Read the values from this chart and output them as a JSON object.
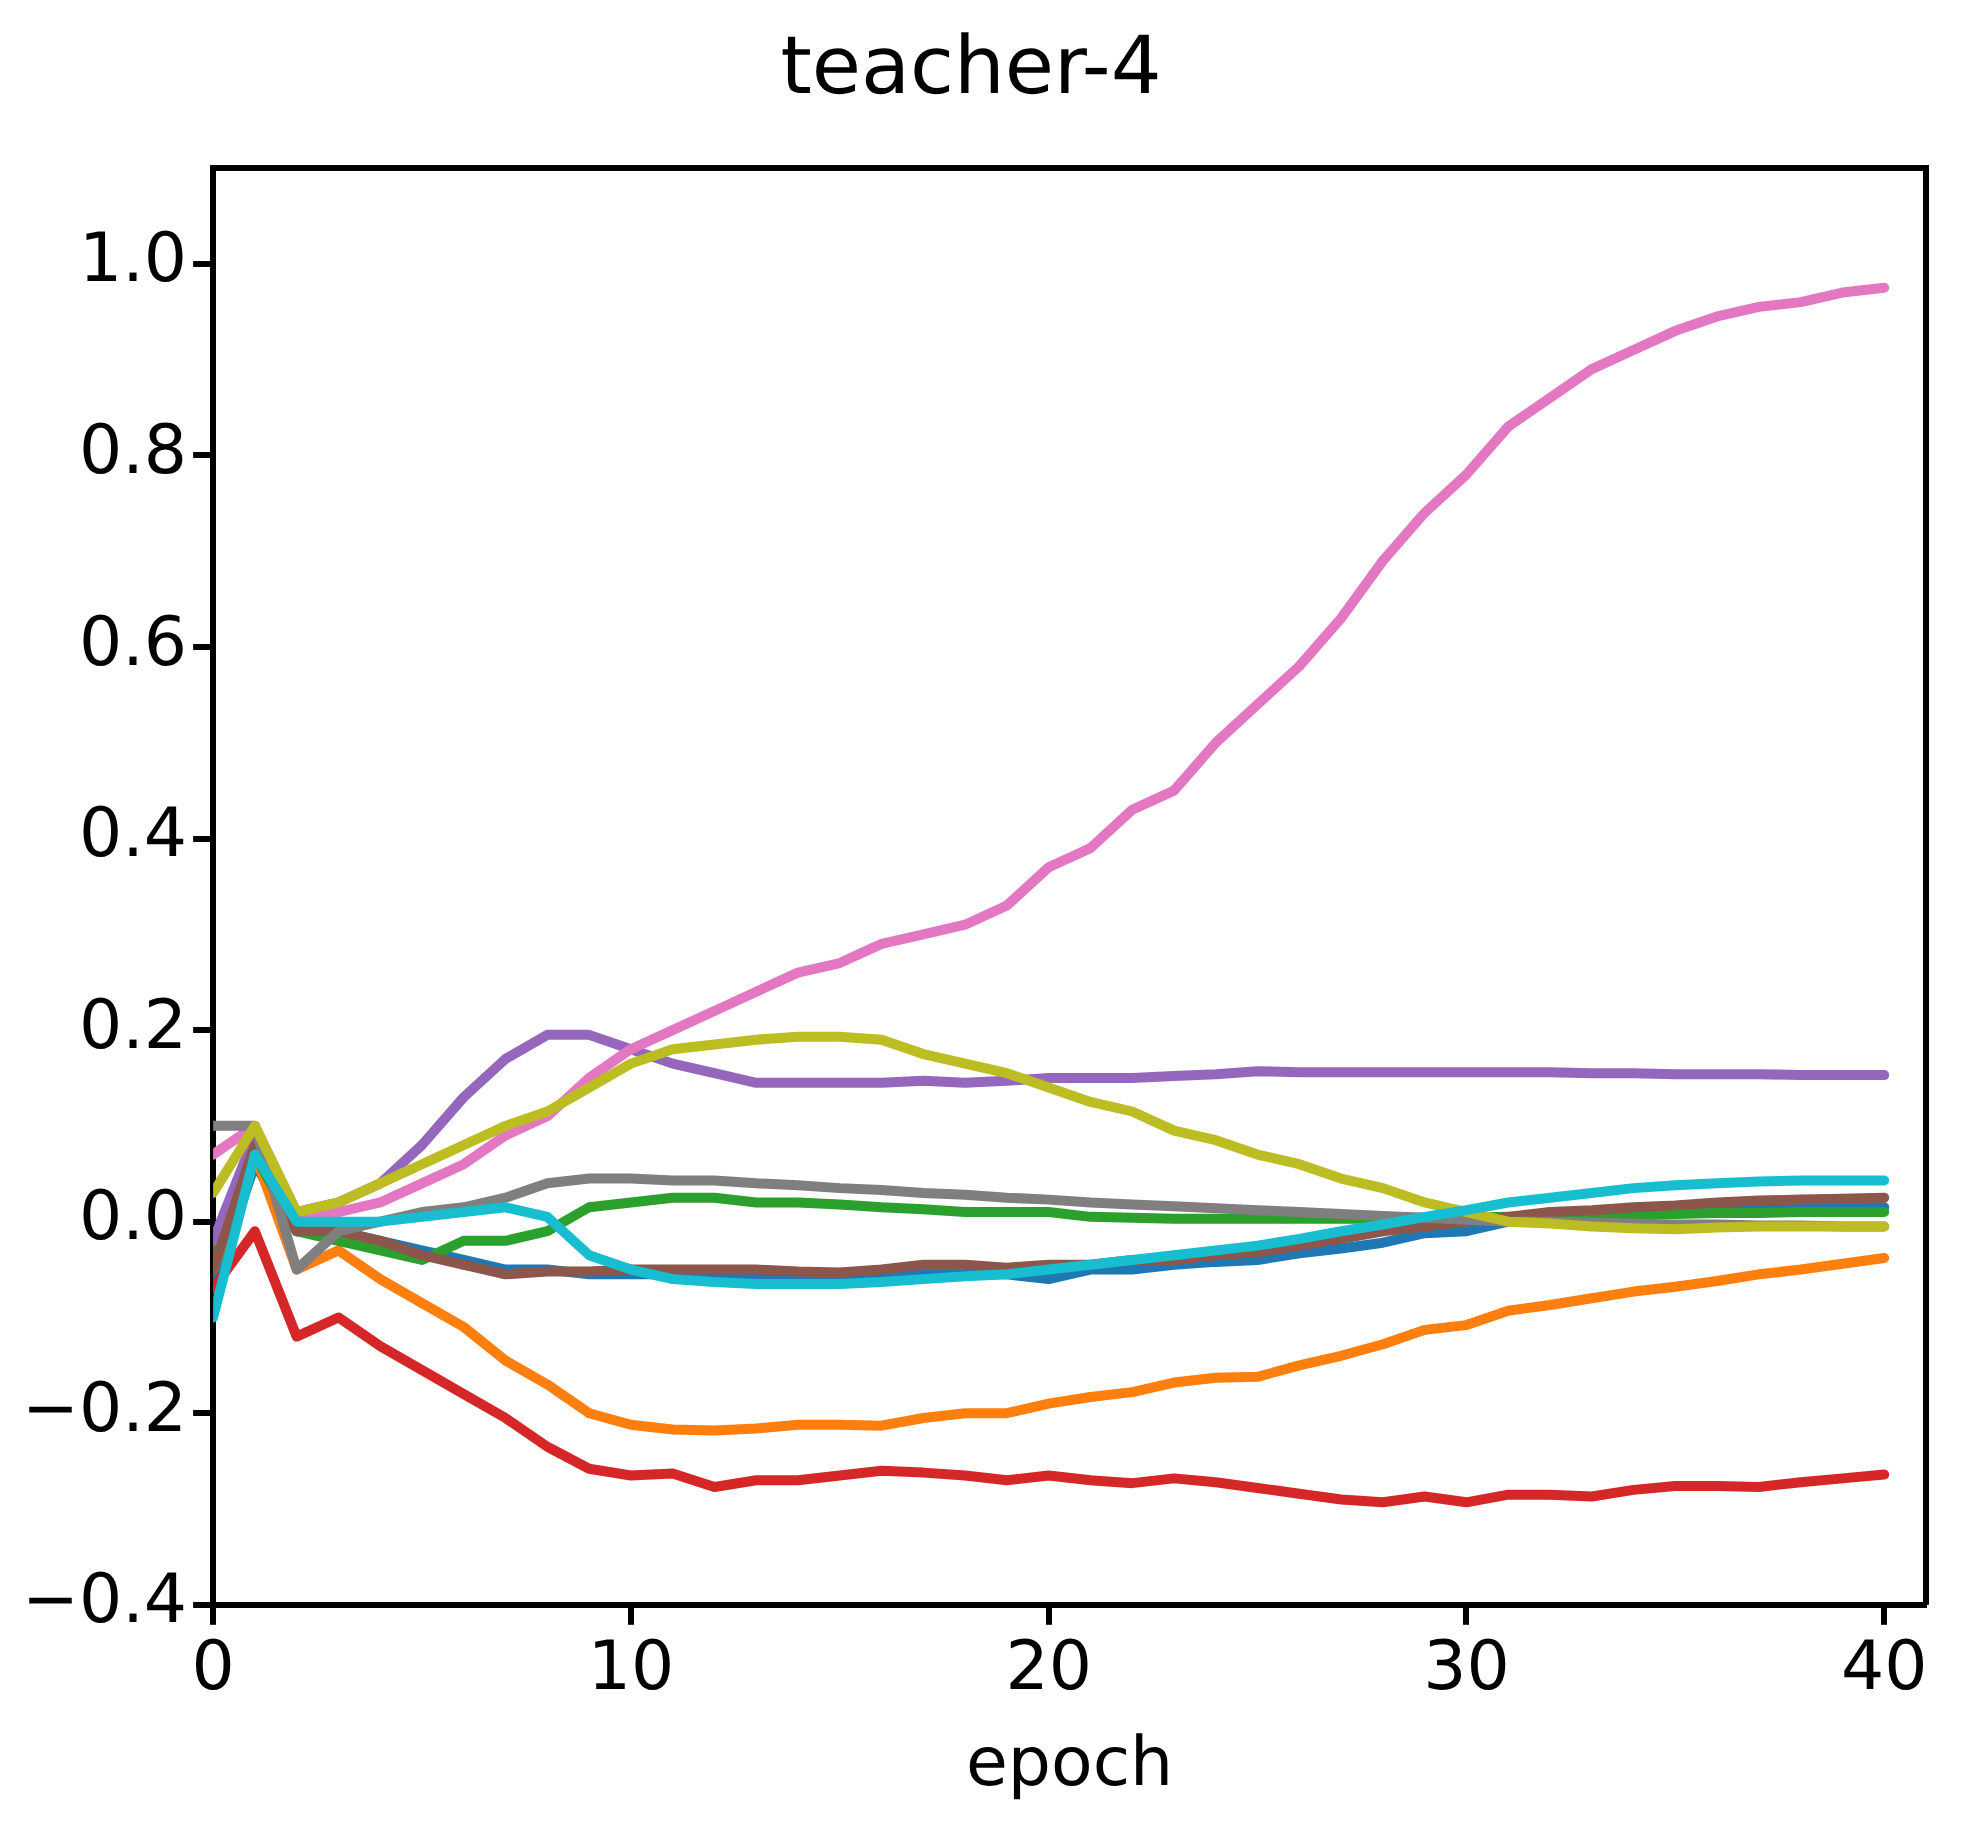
{
  "chart_data": {
    "type": "line",
    "title": "teacher-4",
    "xlabel": "epoch",
    "x": [
      0,
      1,
      2,
      3,
      4,
      5,
      6,
      7,
      8,
      9,
      10,
      11,
      12,
      13,
      14,
      15,
      16,
      17,
      18,
      19,
      20,
      21,
      22,
      23,
      24,
      25,
      26,
      27,
      28,
      29,
      30,
      31,
      32,
      33,
      34,
      35,
      36,
      37,
      38,
      39,
      40
    ],
    "xlim": [
      0,
      41
    ],
    "ylim": [
      -0.4,
      1.1
    ],
    "xticks": [
      0,
      10,
      20,
      30,
      40
    ],
    "yticks": [
      {
        "value": -0.4,
        "label": "−0.4"
      },
      {
        "value": -0.2,
        "label": "−0.2"
      },
      {
        "value": 0,
        "label": "0.0"
      },
      {
        "value": 0.2,
        "label": "0.2"
      },
      {
        "value": 0.4,
        "label": "0.4"
      },
      {
        "value": 0.6,
        "label": "0.6"
      },
      {
        "value": 0.8,
        "label": "0.8"
      },
      {
        "value": 1.0,
        "label": "1.0"
      }
    ],
    "grid": false,
    "legend": false,
    "marker": "none",
    "line_style": "solid",
    "series": [
      {
        "color": "#1f77b4",
        "values": [
          -0.07,
          0.06,
          -0.01,
          -0.01,
          -0.02,
          -0.03,
          -0.04,
          -0.05,
          -0.05,
          -0.055,
          -0.055,
          -0.055,
          -0.055,
          -0.055,
          -0.055,
          -0.055,
          -0.055,
          -0.055,
          -0.055,
          -0.055,
          -0.06,
          -0.05,
          -0.05,
          -0.045,
          -0.042,
          -0.04,
          -0.033,
          -0.028,
          -0.022,
          -0.012,
          -0.01,
          0.0,
          0.005,
          0.008,
          0.01,
          0.012,
          0.013,
          0.014,
          0.014,
          0.015,
          0.015
        ]
      },
      {
        "color": "#ff7f0e",
        "values": [
          -0.05,
          0.07,
          -0.05,
          -0.03,
          -0.06,
          -0.085,
          -0.11,
          -0.145,
          -0.17,
          -0.2,
          -0.212,
          -0.217,
          -0.218,
          -0.216,
          -0.212,
          -0.212,
          -0.213,
          -0.205,
          -0.2,
          -0.2,
          -0.19,
          -0.183,
          -0.178,
          -0.168,
          -0.163,
          -0.162,
          -0.15,
          -0.14,
          -0.128,
          -0.113,
          -0.108,
          -0.093,
          -0.087,
          -0.08,
          -0.073,
          -0.068,
          -0.062,
          -0.055,
          -0.05,
          -0.044,
          -0.038
        ]
      },
      {
        "color": "#2ca02c",
        "values": [
          -0.03,
          0.07,
          -0.01,
          -0.02,
          -0.03,
          -0.04,
          -0.02,
          -0.02,
          -0.01,
          0.015,
          0.02,
          0.025,
          0.025,
          0.02,
          0.02,
          0.018,
          0.015,
          0.013,
          0.01,
          0.01,
          0.01,
          0.005,
          0.004,
          0.003,
          0.003,
          0.003,
          0.003,
          0.003,
          0.003,
          0.004,
          0.004,
          0.005,
          0.006,
          0.007,
          0.008,
          0.008,
          0.009,
          0.009,
          0.01,
          0.01,
          0.01
        ]
      },
      {
        "color": "#d62728",
        "values": [
          -0.07,
          -0.01,
          -0.12,
          -0.1,
          -0.13,
          -0.155,
          -0.18,
          -0.205,
          -0.235,
          -0.258,
          -0.265,
          -0.263,
          -0.277,
          -0.27,
          -0.27,
          -0.265,
          -0.26,
          -0.262,
          -0.265,
          -0.27,
          -0.265,
          -0.27,
          -0.273,
          -0.268,
          -0.272,
          -0.278,
          -0.284,
          -0.29,
          -0.293,
          -0.287,
          -0.293,
          -0.285,
          -0.285,
          -0.287,
          -0.28,
          -0.276,
          -0.276,
          -0.277,
          -0.272,
          -0.268,
          -0.264
        ]
      },
      {
        "color": "#9467bd",
        "values": [
          -0.02,
          0.09,
          0.01,
          0.02,
          0.04,
          0.08,
          0.13,
          0.17,
          0.195,
          0.195,
          0.18,
          0.165,
          0.155,
          0.145,
          0.145,
          0.145,
          0.145,
          0.147,
          0.145,
          0.147,
          0.15,
          0.15,
          0.15,
          0.152,
          0.154,
          0.157,
          0.156,
          0.156,
          0.156,
          0.156,
          0.156,
          0.156,
          0.156,
          0.155,
          0.155,
          0.154,
          0.154,
          0.154,
          0.153,
          0.153,
          0.153
        ]
      },
      {
        "color": "#8c564b",
        "values": [
          -0.05,
          0.08,
          -0.01,
          -0.01,
          -0.02,
          -0.035,
          -0.045,
          -0.055,
          -0.052,
          -0.052,
          -0.05,
          -0.05,
          -0.05,
          -0.05,
          -0.052,
          -0.053,
          -0.05,
          -0.045,
          -0.045,
          -0.048,
          -0.045,
          -0.045,
          -0.04,
          -0.04,
          -0.035,
          -0.032,
          -0.025,
          -0.018,
          -0.01,
          -0.005,
          0.0,
          0.005,
          0.01,
          0.012,
          0.015,
          0.017,
          0.02,
          0.022,
          0.023,
          0.024,
          0.025
        ]
      },
      {
        "color": "#e377c2",
        "values": [
          0.07,
          0.1,
          0.01,
          0.01,
          0.02,
          0.04,
          0.06,
          0.09,
          0.11,
          0.15,
          0.18,
          0.2,
          0.22,
          0.24,
          0.26,
          0.27,
          0.29,
          0.3,
          0.31,
          0.33,
          0.37,
          0.39,
          0.43,
          0.45,
          0.5,
          0.54,
          0.58,
          0.63,
          0.69,
          0.74,
          0.78,
          0.83,
          0.86,
          0.89,
          0.91,
          0.93,
          0.945,
          0.955,
          0.96,
          0.97,
          0.975
        ]
      },
      {
        "color": "#7f7f7f",
        "values": [
          0.1,
          0.1,
          -0.05,
          -0.01,
          0.0,
          0.01,
          0.015,
          0.025,
          0.04,
          0.045,
          0.045,
          0.043,
          0.043,
          0.04,
          0.038,
          0.035,
          0.033,
          0.03,
          0.028,
          0.025,
          0.023,
          0.02,
          0.018,
          0.016,
          0.014,
          0.012,
          0.01,
          0.008,
          0.006,
          0.004,
          0.002,
          0.0,
          0.0,
          -0.001,
          -0.002,
          -0.003,
          -0.003,
          -0.004,
          -0.004,
          -0.005,
          -0.005
        ]
      },
      {
        "color": "#bcbd22",
        "values": [
          0.03,
          0.1,
          0.01,
          0.02,
          0.04,
          0.06,
          0.08,
          0.1,
          0.115,
          0.14,
          0.165,
          0.18,
          0.185,
          0.19,
          0.193,
          0.193,
          0.19,
          0.175,
          0.165,
          0.155,
          0.14,
          0.125,
          0.115,
          0.095,
          0.085,
          0.07,
          0.06,
          0.045,
          0.035,
          0.02,
          0.01,
          0.0,
          -0.002,
          -0.005,
          -0.007,
          -0.008,
          -0.006,
          -0.005,
          -0.005,
          -0.005,
          -0.005
        ]
      },
      {
        "color": "#17becf",
        "values": [
          -0.1,
          0.07,
          0.0,
          0.0,
          0.0,
          0.005,
          0.01,
          0.015,
          0.005,
          -0.035,
          -0.05,
          -0.06,
          -0.063,
          -0.065,
          -0.065,
          -0.065,
          -0.063,
          -0.06,
          -0.057,
          -0.055,
          -0.05,
          -0.045,
          -0.04,
          -0.035,
          -0.03,
          -0.025,
          -0.018,
          -0.01,
          -0.003,
          0.005,
          0.012,
          0.02,
          0.025,
          0.03,
          0.035,
          0.038,
          0.04,
          0.042,
          0.043,
          0.043,
          0.043
        ]
      }
    ]
  }
}
